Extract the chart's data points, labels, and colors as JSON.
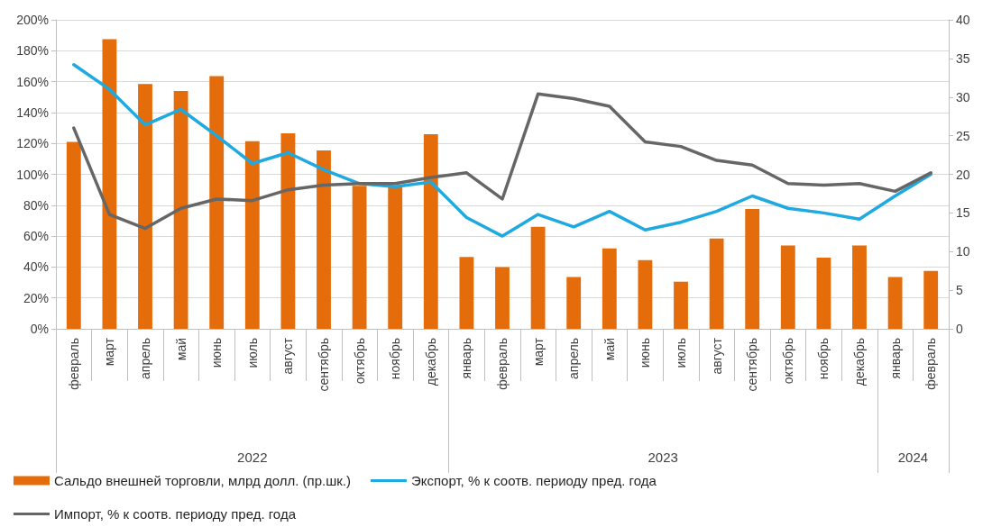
{
  "chart_data": {
    "type": "bar",
    "categories": [
      "февраль",
      "март",
      "апрель",
      "май",
      "июнь",
      "июль",
      "август",
      "сентябрь",
      "октябрь",
      "ноябрь",
      "декабрь",
      "январь",
      "февраль",
      "март",
      "апрель",
      "май",
      "июнь",
      "июль",
      "август",
      "сентябрь",
      "октябрь",
      "ноябрь",
      "декабрь",
      "январь",
      "февраль"
    ],
    "series": [
      {
        "name": "Сальдо внешней торговли, млрд долл. (пр.шк.)",
        "axis": "y2",
        "color": "#e46c0a",
        "values": [
          24.2,
          37.5,
          31.7,
          30.8,
          32.7,
          24.3,
          25.3,
          23.1,
          18.5,
          18.3,
          25.2,
          9.3,
          8.0,
          13.2,
          6.7,
          10.4,
          8.9,
          6.1,
          11.7,
          15.5,
          10.8,
          9.2,
          10.8,
          6.7,
          7.5
        ]
      },
      {
        "name": "Экспорт, % к соотв. периоду пред. года",
        "type": "line",
        "color": "#1ea9e1",
        "values": [
          171,
          155,
          132,
          142,
          125,
          107,
          114,
          103,
          94,
          92,
          95,
          72,
          60,
          74,
          66,
          76,
          64,
          69,
          76,
          86,
          78,
          75,
          71,
          86,
          100
        ]
      },
      {
        "name": "Импорт, % к соотв. периоду пред. года",
        "type": "line",
        "color": "#666666",
        "values": [
          130,
          74,
          65,
          78,
          84,
          83,
          90,
          93,
          94,
          94,
          98,
          101,
          84,
          152,
          149,
          144,
          121,
          118,
          109,
          106,
          94,
          93,
          94,
          89,
          101
        ]
      }
    ],
    "ylim": [
      0,
      200
    ],
    "yticks": [
      {
        "value": 0,
        "label": "0%"
      },
      {
        "value": 20,
        "label": "20%"
      },
      {
        "value": 40,
        "label": "40%"
      },
      {
        "value": 60,
        "label": "60%"
      },
      {
        "value": 80,
        "label": "80%"
      },
      {
        "value": 100,
        "label": "100%"
      },
      {
        "value": 120,
        "label": "120%"
      },
      {
        "value": 140,
        "label": "140%"
      },
      {
        "value": 160,
        "label": "160%"
      },
      {
        "value": 180,
        "label": "180%"
      },
      {
        "value": 200,
        "label": "200%"
      }
    ],
    "y2lim": [
      0,
      40
    ],
    "y2ticks": [
      0,
      5,
      10,
      15,
      20,
      25,
      30,
      35,
      40
    ],
    "annotations": [
      "2022",
      "2023",
      "2024"
    ],
    "grid": "y",
    "legend": "bottom",
    "marker": "none",
    "line_style": "solid"
  }
}
